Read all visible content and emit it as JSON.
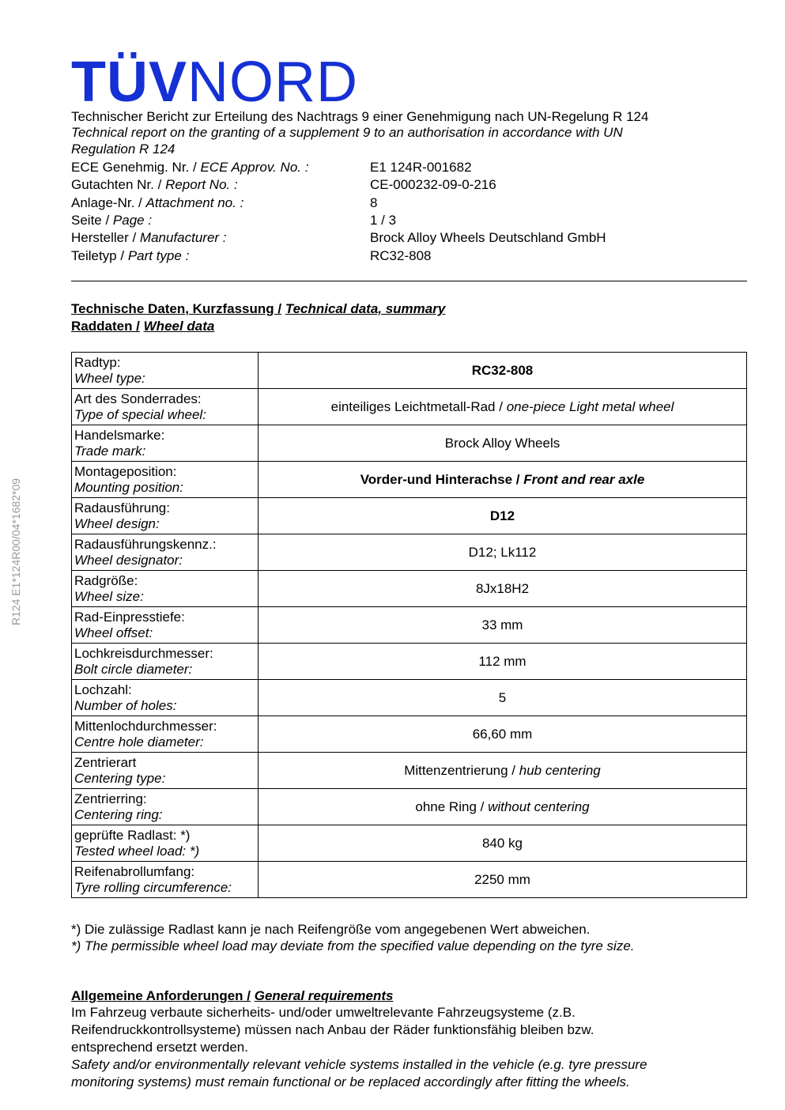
{
  "logo": {
    "text_bold": "TÜV",
    "text_regular": "NORD",
    "color": "#1530d4"
  },
  "side_text": "R124  E1*124R00/04*1682*09",
  "title_de": "Technischer Bericht zur Erteilung des Nachtrags 9 einer Genehmigung nach UN-Regelung R 124",
  "title_en_1": "Technical report on the granting of a supplement 9 to an authorisation in accordance with UN",
  "title_en_2": "Regulation R 124",
  "meta": [
    {
      "de": "ECE Genehmig. Nr.  / ",
      "en": "ECE Approv. No. :",
      "value": "E1 124R-001682"
    },
    {
      "de": "Gutachten Nr.  / ",
      "en": "Report No. :",
      "value": "CE-000232-09-0-216"
    },
    {
      "de": "Anlage-Nr.  / ",
      "en": "Attachment no. :",
      "value": "8"
    },
    {
      "de": "Seite  / ",
      "en": "Page :",
      "value": "1 / 3"
    },
    {
      "de": "Hersteller  / ",
      "en": "Manufacturer :",
      "value": "Brock Alloy Wheels Deutschland GmbH"
    },
    {
      "de": "Teiletyp  / ",
      "en": "Part type :",
      "value": "RC32-808"
    }
  ],
  "section1": {
    "de": "Technische Daten, Kurzfassung /",
    "en": "Technical data, summary"
  },
  "section2": {
    "de": "Raddaten /",
    "en": "Wheel data"
  },
  "rows": [
    {
      "de": "Radtyp:",
      "en": "Wheel type:",
      "v_de": "RC32-808",
      "v_en": "",
      "bold": true
    },
    {
      "de": "Art des Sonderrades:",
      "en": "Type of special wheel:",
      "v_de": "einteiliges Leichtmetall-Rad / ",
      "v_en": "one-piece Light metal wheel",
      "bold": false
    },
    {
      "de": "Handelsmarke:",
      "en": "Trade mark:",
      "v_de": "Brock Alloy Wheels",
      "v_en": "",
      "bold": false
    },
    {
      "de": "Montageposition:",
      "en": "Mounting position:",
      "v_de": "Vorder-und Hinterachse / ",
      "v_en": "Front and rear axle",
      "bold": true
    },
    {
      "de": "Radausführung:",
      "en": "Wheel design:",
      "v_de": "D12",
      "v_en": "",
      "bold": true
    },
    {
      "de": "Radausführungskennz.:",
      "en": "Wheel designator:",
      "v_de": "D12; Lk112",
      "v_en": "",
      "bold": false
    },
    {
      "de": "Radgröße:",
      "en": "Wheel size:",
      "v_de": "8Jx18H2",
      "v_en": "",
      "bold": false
    },
    {
      "de": "Rad-Einpresstiefe:",
      "en": "Wheel offset:",
      "v_de": "33 mm",
      "v_en": "",
      "bold": false
    },
    {
      "de": "Lochkreisdurchmesser:",
      "en": "Bolt circle diameter:",
      "v_de": "112 mm",
      "v_en": "",
      "bold": false
    },
    {
      "de": "Lochzahl:",
      "en": "Number of holes:",
      "v_de": "5",
      "v_en": "",
      "bold": false
    },
    {
      "de": "Mittenlochdurchmesser:",
      "en": "Centre hole diameter:",
      "v_de": "66,60 mm",
      "v_en": "",
      "bold": false
    },
    {
      "de": "Zentrierart",
      "en": "Centering type:",
      "v_de": "Mittenzentrierung / ",
      "v_en": "hub centering",
      "bold": false
    },
    {
      "de": "Zentrierring:",
      "en": "Centering ring:",
      "v_de": "ohne Ring / ",
      "v_en": "without centering",
      "bold": false
    },
    {
      "de": "geprüfte Radlast: *)",
      "en": "Tested wheel load: *)",
      "v_de": "840 kg",
      "v_en": "",
      "bold": false
    },
    {
      "de": "Reifenabrollumfang:",
      "en": "Tyre rolling circumference:",
      "v_de": "2250 mm",
      "v_en": "",
      "bold": false
    }
  ],
  "note_de": "*) Die zulässige Radlast kann je nach Reifengröße vom angegebenen Wert abweichen.",
  "note_en": "*) The permissible wheel load may deviate from the specified value depending on the tyre size.",
  "section3": {
    "de": "Allgemeine Anforderungen /",
    "en": "General requirements"
  },
  "req_de": [
    "Im Fahrzeug verbaute sicherheits- und/oder umweltrelevante Fahrzeugsysteme (z.B.",
    "Reifendruckkontrollsysteme) müssen nach Anbau der Räder funktionsfähig bleiben bzw.",
    "entsprechend ersetzt werden."
  ],
  "req_en": [
    "Safety and/or environmentally relevant vehicle systems installed in the vehicle (e.g. tyre pressure",
    "monitoring systems) must remain functional or be replaced accordingly after fitting the wheels."
  ]
}
